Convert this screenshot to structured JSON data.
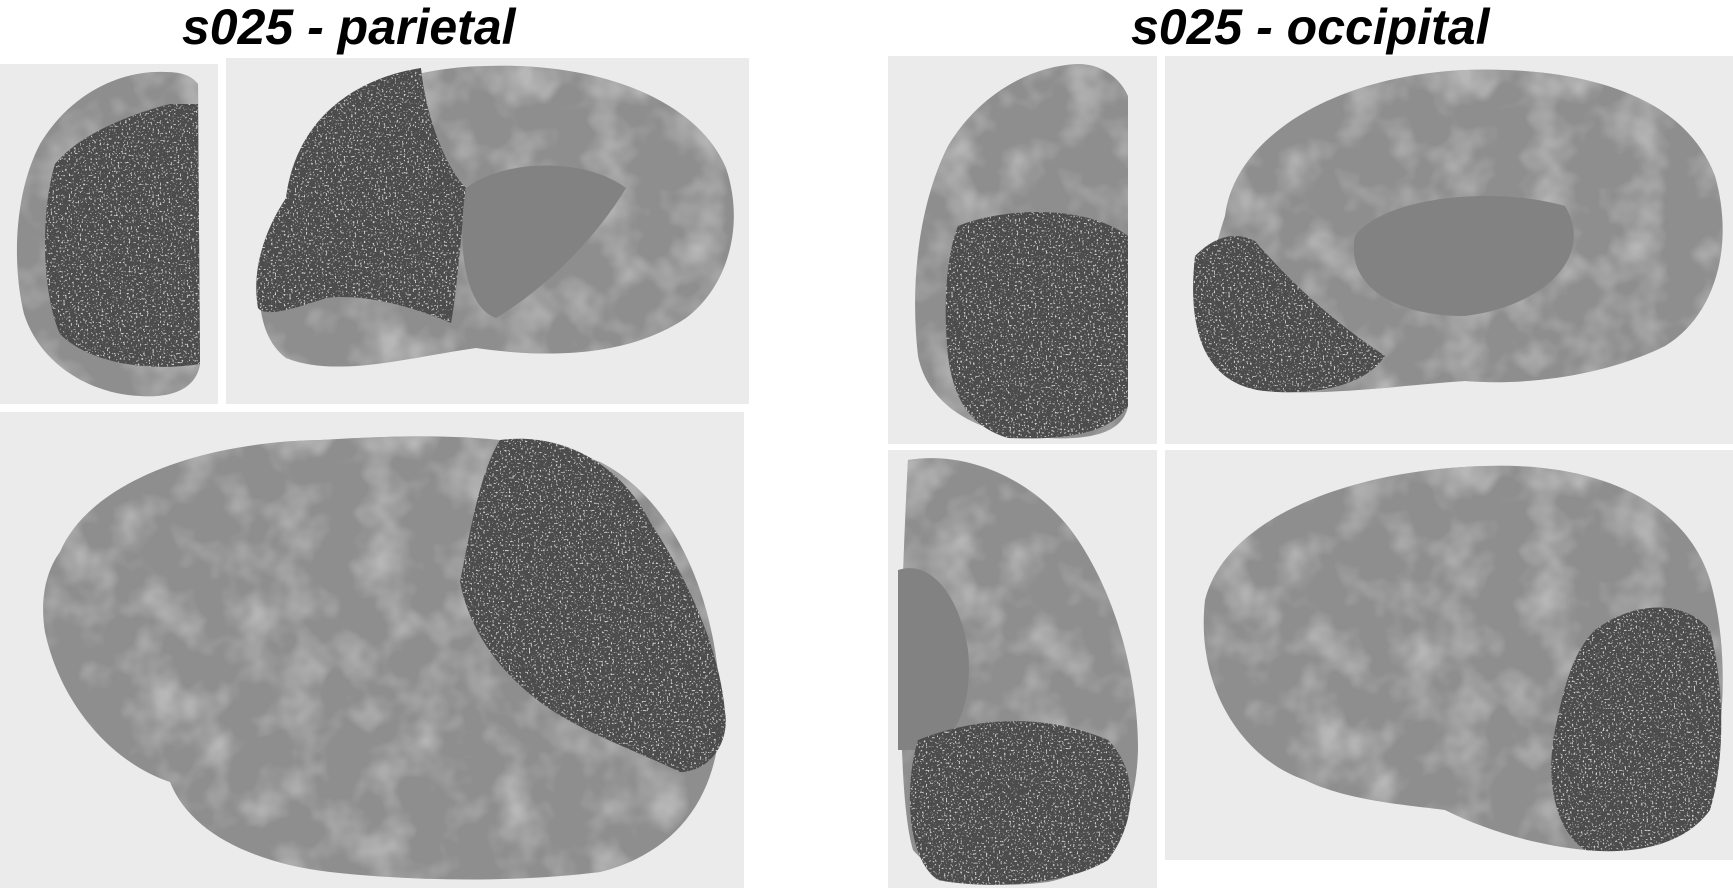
{
  "figure": {
    "left_title": "s025 - parietal",
    "right_title": "s025 - occipital"
  },
  "colors": {
    "background": "#ffffff",
    "panel_background": "#ebebeb",
    "cortex": "#8e8e8e",
    "cortex_sulcus": "#6f6f6f",
    "cortex_highlight": "#a6a6a6",
    "region": "#4c4c4c",
    "region_speckle": "#9a9a9a",
    "medial_wall": "#808080"
  },
  "panels": {
    "parietal": [
      "posterior-view",
      "medial-view",
      "lateral-view"
    ],
    "occipital": [
      "posterior-view",
      "medial-view",
      "inferior-view",
      "lateral-view"
    ]
  }
}
